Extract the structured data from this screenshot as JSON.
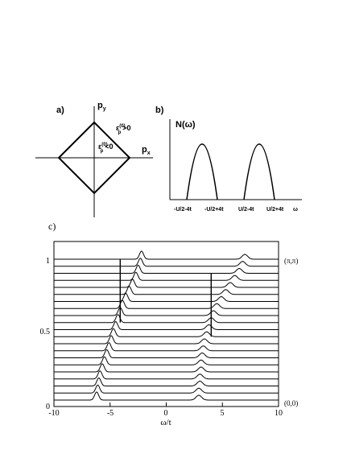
{
  "panel_a": {
    "label": "a)",
    "axis_y": "p",
    "axis_y_sub": "y",
    "axis_x": "p",
    "axis_x_sub": "x",
    "inside_label": "ε",
    "inside_sup": "(0)",
    "inside_sub": "p",
    "inside_rel": "<0",
    "outside_label": "ε",
    "outside_sup": "(0)",
    "outside_sub": "p",
    "outside_rel": ">0"
  },
  "panel_b": {
    "label": "b)",
    "ylabel": "N(ω)",
    "ticks": [
      "-U/2-4t",
      "-U/2+4t",
      "U/2-4t",
      "U/2+4t",
      "ω"
    ]
  },
  "panel_c": {
    "label": "c)",
    "xlabel": "ω/t",
    "x_ticks": [
      "-10",
      "-5",
      "0",
      "5",
      "10"
    ],
    "y_ticks": [
      "0",
      "0.5",
      "1"
    ],
    "top_right_label": "(π,π)",
    "bottom_right_label": "(0,0)"
  },
  "chart_data": {
    "type": "line",
    "title": "",
    "xlabel": "ω/t",
    "ylabel": "",
    "xlim": [
      -10,
      10
    ],
    "ylim": [
      0,
      1
    ],
    "x_ticks": [
      -10,
      -5,
      0,
      5,
      10
    ],
    "y_ticks": [
      0,
      0.5,
      1
    ],
    "description_series_offset": 0.05,
    "series": [
      {
        "offset": 0.0,
        "peak_low": -6.2,
        "peak_high": 2.9
      },
      {
        "offset": 0.05,
        "peak_low": -6.1,
        "peak_high": 2.9
      },
      {
        "offset": 0.1,
        "peak_low": -6.0,
        "peak_high": 3.0
      },
      {
        "offset": 0.15,
        "peak_low": -5.9,
        "peak_high": 3.0
      },
      {
        "offset": 0.2,
        "peak_low": -5.7,
        "peak_high": 3.1
      },
      {
        "offset": 0.25,
        "peak_low": -5.5,
        "peak_high": 3.1
      },
      {
        "offset": 0.3,
        "peak_low": -5.3,
        "peak_high": 3.2
      },
      {
        "offset": 0.35,
        "peak_low": -5.1,
        "peak_high": 3.3
      },
      {
        "offset": 0.4,
        "peak_low": -4.9,
        "peak_high": 3.4
      },
      {
        "offset": 0.45,
        "peak_low": -4.7,
        "peak_high": 3.6
      },
      {
        "offset": 0.5,
        "peak_low": -4.5,
        "peak_high": 3.8
      },
      {
        "offset": 0.55,
        "peak_low": -4.3,
        "peak_high": 4.0
      },
      {
        "offset": 0.6,
        "peak_low": -4.1,
        "peak_high": 4.2
      },
      {
        "offset": 0.65,
        "peak_low": -3.9,
        "peak_high": 4.5
      },
      {
        "offset": 0.7,
        "peak_low": -3.6,
        "peak_high": 4.9
      },
      {
        "offset": 0.75,
        "peak_low": -3.3,
        "peak_high": 5.3
      },
      {
        "offset": 0.8,
        "peak_low": -3.0,
        "peak_high": 5.7
      },
      {
        "offset": 0.85,
        "peak_low": -2.7,
        "peak_high": 6.1
      },
      {
        "offset": 0.9,
        "peak_low": -2.5,
        "peak_high": 6.5
      },
      {
        "offset": 0.95,
        "peak_low": -2.3,
        "peak_high": 6.8
      },
      {
        "offset": 1.0,
        "peak_low": -2.2,
        "peak_high": 7.0
      }
    ]
  }
}
